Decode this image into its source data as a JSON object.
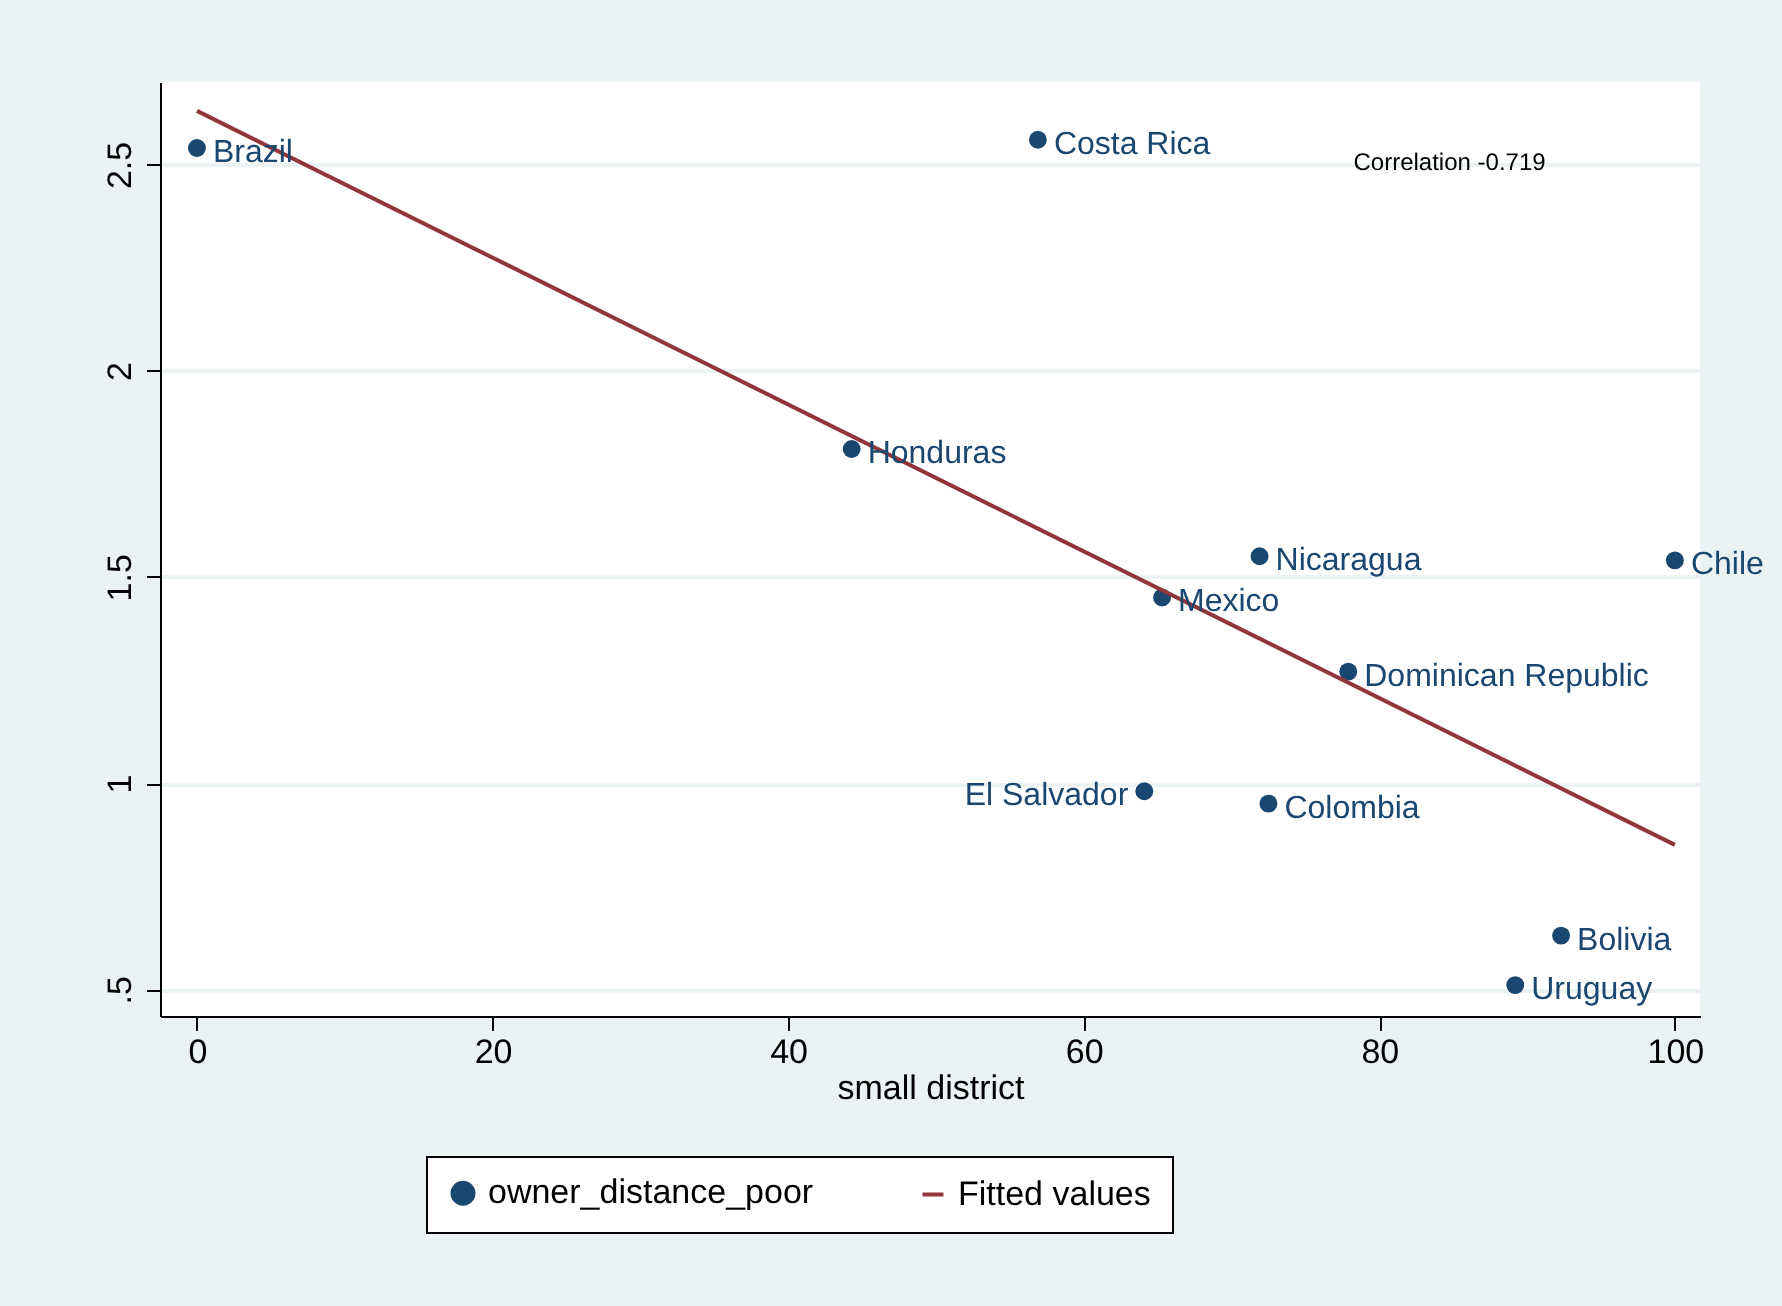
{
  "chart_data": {
    "type": "scatter",
    "xlabel": "small district",
    "xlim": [
      -2.5,
      101.7
    ],
    "ylim": [
      0.435,
      2.7
    ],
    "xticks": [
      0,
      20,
      40,
      60,
      80,
      100
    ],
    "yticks": [
      {
        "value": 0.5,
        "label": ".5"
      },
      1,
      1.5,
      2,
      2.5
    ],
    "grid": "y",
    "legend": "bottom",
    "series": [
      {
        "name": "owner_distance_poor",
        "marker": "circle",
        "color": "#1a476f",
        "x": [
          0,
          56.9,
          44.3,
          71.9,
          100,
          65.3,
          77.9,
          64.1,
          72.5,
          92.3,
          89.2
        ],
        "values": [
          2.54,
          2.56,
          1.81,
          1.55,
          1.54,
          1.45,
          1.27,
          0.98,
          0.95,
          0.63,
          0.51
        ]
      },
      {
        "name": "Fitted values",
        "type": "line",
        "color": "#90353b",
        "x": [
          0,
          100
        ],
        "values": [
          2.63,
          0.85
        ]
      }
    ],
    "annotations": [
      {
        "text": "Brazil",
        "x": 0,
        "y": 2.54
      },
      {
        "text": "Costa Rica",
        "x": 56.9,
        "y": 2.56
      },
      {
        "text": "Honduras",
        "x": 44.3,
        "y": 1.81
      },
      {
        "text": "Nicaragua",
        "x": 71.9,
        "y": 1.55
      },
      {
        "text": "Chile",
        "x": 100,
        "y": 1.54
      },
      {
        "text": "Mexico",
        "x": 65.3,
        "y": 1.45
      },
      {
        "text": "Dominican Republic",
        "x": 77.9,
        "y": 1.27
      },
      {
        "text": "El Salvador",
        "x": 64.1,
        "y": 0.98
      },
      {
        "text": "Colombia",
        "x": 72.5,
        "y": 0.95
      },
      {
        "text": "Bolivia",
        "x": 92.3,
        "y": 0.63
      },
      {
        "text": "Uruguay",
        "x": 89.2,
        "y": 0.51
      },
      "Correlation -0.719"
    ]
  }
}
